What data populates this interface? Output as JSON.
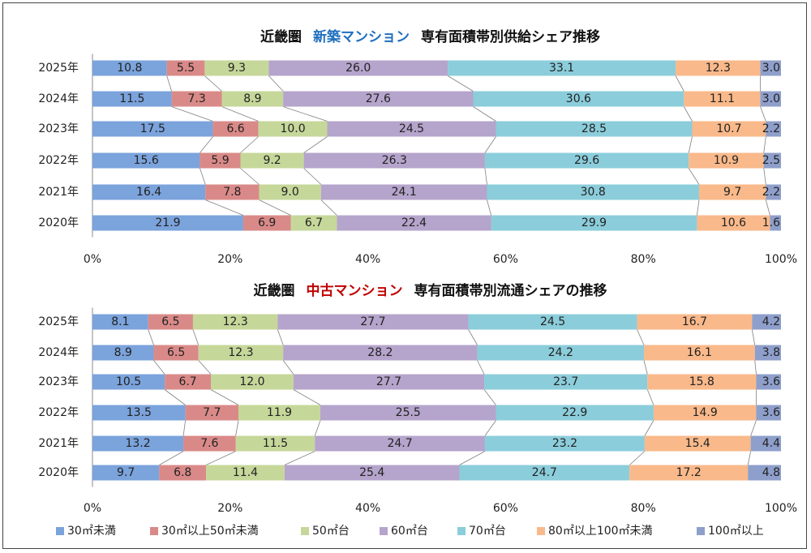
{
  "colors": {
    "series": [
      "#7BA3DC",
      "#D98A88",
      "#C6D79A",
      "#B5A4CB",
      "#8BCDDB",
      "#F9B98A",
      "#8E9FCB"
    ],
    "title_accent_new": "#1F6FBF",
    "title_accent_used": "#C00000",
    "text": "#222222",
    "connector": "#808080"
  },
  "legend": [
    "30㎡未満",
    "30㎡以上50㎡未満",
    "50㎡台",
    "60㎡台",
    "70㎡台",
    "80㎡以上100㎡未満",
    "100㎡以上"
  ],
  "chart_data": [
    {
      "type": "bar",
      "stacked": "percent",
      "orientation": "horizontal",
      "title_prefix": "近畿圏",
      "title_accent": "新築マンション",
      "title_suffix": "専有面積帯別供給シェア推移",
      "categories": [
        "2025年",
        "2024年",
        "2023年",
        "2022年",
        "2021年",
        "2020年"
      ],
      "xlim": [
        0,
        100
      ],
      "x_ticks": [
        "0%",
        "20%",
        "40%",
        "60%",
        "80%",
        "100%"
      ],
      "series": [
        {
          "name": "30㎡未満",
          "values": [
            10.8,
            11.5,
            17.5,
            15.6,
            16.4,
            21.9
          ]
        },
        {
          "name": "30㎡以上50㎡未満",
          "values": [
            5.5,
            7.3,
            6.6,
            5.9,
            7.8,
            6.9
          ]
        },
        {
          "name": "50㎡台",
          "values": [
            9.3,
            8.9,
            10.0,
            9.2,
            9.0,
            6.7
          ]
        },
        {
          "name": "60㎡台",
          "values": [
            26.0,
            27.6,
            24.5,
            26.3,
            24.1,
            22.4
          ]
        },
        {
          "name": "70㎡台",
          "values": [
            33.1,
            30.6,
            28.5,
            29.6,
            30.8,
            29.9
          ]
        },
        {
          "name": "80㎡以上100㎡未満",
          "values": [
            12.3,
            11.1,
            10.7,
            10.9,
            9.7,
            10.6
          ]
        },
        {
          "name": "100㎡以上",
          "values": [
            3.0,
            3.0,
            2.2,
            2.5,
            2.2,
            1.6
          ]
        }
      ]
    },
    {
      "type": "bar",
      "stacked": "percent",
      "orientation": "horizontal",
      "title_prefix": "近畿圏",
      "title_accent": "中古マンション",
      "title_suffix": "専有面積帯別流通シェアの推移",
      "categories": [
        "2025年",
        "2024年",
        "2023年",
        "2022年",
        "2021年",
        "2020年"
      ],
      "xlim": [
        0,
        100
      ],
      "x_ticks": [
        "0%",
        "20%",
        "40%",
        "60%",
        "80%",
        "100%"
      ],
      "series": [
        {
          "name": "30㎡未満",
          "values": [
            8.1,
            8.9,
            10.5,
            13.5,
            13.2,
            9.7
          ]
        },
        {
          "name": "30㎡以上50㎡未満",
          "values": [
            6.5,
            6.5,
            6.7,
            7.7,
            7.6,
            6.8
          ]
        },
        {
          "name": "50㎡台",
          "values": [
            12.3,
            12.3,
            12.0,
            11.9,
            11.5,
            11.4
          ]
        },
        {
          "name": "60㎡台",
          "values": [
            27.7,
            28.2,
            27.7,
            25.5,
            24.7,
            25.4
          ]
        },
        {
          "name": "70㎡台",
          "values": [
            24.5,
            24.2,
            23.7,
            22.9,
            23.2,
            24.7
          ]
        },
        {
          "name": "80㎡以上100㎡未満",
          "values": [
            16.7,
            16.1,
            15.8,
            14.9,
            15.4,
            17.2
          ]
        },
        {
          "name": "100㎡以上",
          "values": [
            4.2,
            3.8,
            3.6,
            3.6,
            4.4,
            4.8
          ]
        }
      ]
    }
  ]
}
